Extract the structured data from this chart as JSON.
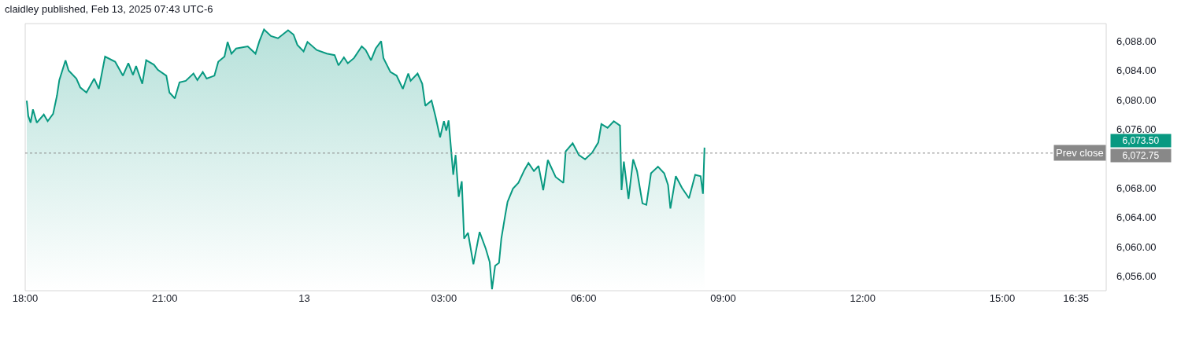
{
  "chart_data": {
    "type": "area",
    "title": "claidley published, Feb 13, 2025 07:43 UTC-6",
    "x": [
      "2025-02-12T18:02",
      "2025-02-12T18:04",
      "2025-02-12T18:07",
      "2025-02-12T18:10",
      "2025-02-12T18:15",
      "2025-02-12T18:24",
      "2025-02-12T18:29",
      "2025-02-12T18:36",
      "2025-02-12T18:41",
      "2025-02-12T18:44",
      "2025-02-12T18:52",
      "2025-02-12T18:56",
      "2025-02-12T19:06",
      "2025-02-12T19:11",
      "2025-02-12T19:19",
      "2025-02-12T19:29",
      "2025-02-12T19:35",
      "2025-02-12T19:43",
      "2025-02-12T19:56",
      "2025-02-12T20:06",
      "2025-02-12T20:13",
      "2025-02-12T20:19",
      "2025-02-12T20:23",
      "2025-02-12T20:31",
      "2025-02-12T20:36",
      "2025-02-12T20:46",
      "2025-02-12T20:51",
      "2025-02-12T21:02",
      "2025-02-12T21:06",
      "2025-02-12T21:13",
      "2025-02-12T21:19",
      "2025-02-12T21:27",
      "2025-02-12T21:37",
      "2025-02-12T21:42",
      "2025-02-12T21:49",
      "2025-02-12T21:54",
      "2025-02-12T22:04",
      "2025-02-12T22:09",
      "2025-02-12T22:17",
      "2025-02-12T22:21",
      "2025-02-12T22:26",
      "2025-02-12T22:32",
      "2025-02-12T22:47",
      "2025-02-12T22:57",
      "2025-02-12T23:02",
      "2025-02-12T23:08",
      "2025-02-12T23:17",
      "2025-02-12T23:26",
      "2025-02-12T23:39",
      "2025-02-12T23:46",
      "2025-02-12T23:51",
      "2025-02-12T23:59",
      "2025-02-13T00:04",
      "2025-02-13T00:16",
      "2025-02-13T00:29",
      "2025-02-13T00:39",
      "2025-02-13T00:44",
      "2025-02-13T00:51",
      "2025-02-13T00:56",
      "2025-02-13T01:04",
      "2025-02-13T01:14",
      "2025-02-13T01:19",
      "2025-02-13T01:26",
      "2025-02-13T01:32",
      "2025-02-13T01:39",
      "2025-02-13T01:42",
      "2025-02-13T01:51",
      "2025-02-13T01:59",
      "2025-02-13T02:07",
      "2025-02-13T02:14",
      "2025-02-13T02:17",
      "2025-02-13T02:26",
      "2025-02-13T02:32",
      "2025-02-13T02:36",
      "2025-02-13T02:44",
      "2025-02-13T02:49",
      "2025-02-13T02:55",
      "2025-02-13T03:00",
      "2025-02-13T03:03",
      "2025-02-13T03:06",
      "2025-02-13T03:12",
      "2025-02-13T03:15",
      "2025-02-13T03:19",
      "2025-02-13T03:23",
      "2025-02-13T03:26",
      "2025-02-13T03:31",
      "2025-02-13T03:38",
      "2025-02-13T03:46",
      "2025-02-13T03:54",
      "2025-02-13T03:59",
      "2025-02-13T04:02",
      "2025-02-13T04:06",
      "2025-02-13T04:11",
      "2025-02-13T04:14",
      "2025-02-13T04:19",
      "2025-02-13T04:22",
      "2025-02-13T04:29",
      "2025-02-13T04:36",
      "2025-02-13T04:44",
      "2025-02-13T04:49",
      "2025-02-13T04:56",
      "2025-02-13T05:02",
      "2025-02-13T05:08",
      "2025-02-13T05:14",
      "2025-02-13T05:24",
      "2025-02-13T05:34",
      "2025-02-13T05:37",
      "2025-02-13T05:46",
      "2025-02-13T05:54",
      "2025-02-13T06:02",
      "2025-02-13T06:11",
      "2025-02-13T06:19",
      "2025-02-13T06:23",
      "2025-02-13T06:31",
      "2025-02-13T06:39",
      "2025-02-13T06:47",
      "2025-02-13T06:49",
      "2025-02-13T06:52",
      "2025-02-13T06:58",
      "2025-02-13T07:04",
      "2025-02-13T07:09",
      "2025-02-13T07:16",
      "2025-02-13T07:21",
      "2025-02-13T07:27",
      "2025-02-13T07:36",
      "2025-02-13T07:44",
      "2025-02-13T07:49",
      "2025-02-13T07:52",
      "2025-02-13T07:59",
      "2025-02-13T08:07",
      "2025-02-13T08:16",
      "2025-02-13T08:24",
      "2025-02-13T08:31",
      "2025-02-13T08:34",
      "2025-02-13T08:36"
    ],
    "series": [
      {
        "color": "#089981",
        "values": [
          6079.9,
          6077.8,
          6076.9,
          6078.7,
          6076.9,
          6078.0,
          6077.1,
          6078.1,
          6080.6,
          6082.7,
          6085.4,
          6084.0,
          6082.9,
          6081.7,
          6081.0,
          6082.9,
          6081.5,
          6085.9,
          6085.2,
          6083.3,
          6085.0,
          6083.4,
          6084.6,
          6082.2,
          6085.4,
          6084.8,
          6084.1,
          6083.3,
          6081.0,
          6080.2,
          6082.4,
          6082.6,
          6083.6,
          6082.7,
          6083.8,
          6082.9,
          6083.3,
          6085.2,
          6085.9,
          6087.9,
          6086.3,
          6087.0,
          6087.3,
          6086.3,
          6088.0,
          6089.6,
          6088.7,
          6088.4,
          6089.5,
          6088.9,
          6087.5,
          6086.6,
          6087.9,
          6086.8,
          6086.3,
          6086.1,
          6084.7,
          6085.8,
          6085.0,
          6085.7,
          6087.3,
          6086.8,
          6085.4,
          6087.0,
          6088.0,
          6085.7,
          6083.8,
          6083.3,
          6081.5,
          6083.6,
          6082.6,
          6083.6,
          6082.2,
          6079.2,
          6079.9,
          6077.8,
          6074.9,
          6077.1,
          6075.8,
          6077.2,
          6069.8,
          6072.5,
          6066.8,
          6068.9,
          6061.1,
          6061.9,
          6057.6,
          6062.0,
          6059.7,
          6057.9,
          6054.2,
          6057.4,
          6057.8,
          6061.1,
          6064.3,
          6066.1,
          6067.9,
          6068.7,
          6070.5,
          6071.4,
          6070.3,
          6071.0,
          6067.7,
          6071.8,
          6069.5,
          6068.7,
          6073.0,
          6074.1,
          6072.5,
          6071.9,
          6072.8,
          6074.2,
          6076.7,
          6076.2,
          6077.1,
          6076.5,
          6067.7,
          6071.6,
          6066.5,
          6071.9,
          6070.3,
          6065.9,
          6065.7,
          6070.0,
          6070.9,
          6070.0,
          6068.4,
          6065.2,
          6069.6,
          6068.0,
          6066.6,
          6069.8,
          6069.6,
          6067.2,
          6073.5
        ]
      }
    ],
    "xlim": [
      "2025-02-12T18:00",
      "2025-02-13T17:14"
    ],
    "xticks": [
      {
        "value": "2025-02-12T18:00",
        "label": "18:00"
      },
      {
        "value": "2025-02-12T21:00",
        "label": "21:00"
      },
      {
        "value": "2025-02-13T00:00",
        "label": "13"
      },
      {
        "value": "2025-02-13T03:00",
        "label": "03:00"
      },
      {
        "value": "2025-02-13T06:00",
        "label": "06:00"
      },
      {
        "value": "2025-02-13T09:00",
        "label": "09:00"
      },
      {
        "value": "2025-02-13T12:00",
        "label": "12:00"
      },
      {
        "value": "2025-02-13T15:00",
        "label": "15:00"
      },
      {
        "value": "2025-02-13T16:35",
        "label": "16:35"
      }
    ],
    "ylim": [
      6054,
      6090.4
    ],
    "yticks": [
      {
        "value": 6056,
        "label": "6,056.00"
      },
      {
        "value": 6060,
        "label": "6,060.00"
      },
      {
        "value": 6064,
        "label": "6,064.00"
      },
      {
        "value": 6068,
        "label": "6,068.00"
      },
      {
        "value": 6076,
        "label": "6,076.00"
      },
      {
        "value": 6080,
        "label": "6,080.00"
      },
      {
        "value": 6084,
        "label": "6,084.00"
      },
      {
        "value": 6088,
        "label": "6,088.00"
      }
    ],
    "ref_lines": [
      {
        "axis": "y",
        "value": 6072.75,
        "label": "Prev close",
        "color": "#888888",
        "line_style": "dotted"
      }
    ],
    "annotations": [
      "6,073.50",
      "6,072.75"
    ],
    "marker": "none",
    "line_style": "solid"
  }
}
